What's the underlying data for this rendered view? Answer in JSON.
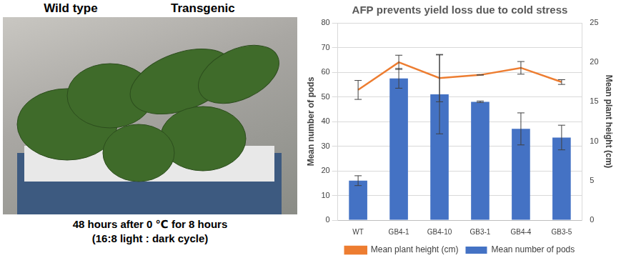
{
  "photo": {
    "labels": [
      "Wild type",
      "Transgenic"
    ],
    "caption": [
      "48 hours after 0 ℃ for 8 hours",
      "(16:8 light : dark cycle)"
    ]
  },
  "chart_data": {
    "type": "bar",
    "title": "AFP prevents yield loss due to cold stress",
    "categories": [
      "WT",
      "GB4-1",
      "GB4-10",
      "GB3-1",
      "GB4-4",
      "GB3-5"
    ],
    "series": [
      {
        "name": "Mean number of pods",
        "type": "bar",
        "color": "#4472c4",
        "values": [
          16,
          57.5,
          51,
          48,
          37,
          33.5
        ],
        "errors": [
          2,
          4,
          16,
          0.3,
          6.5,
          5
        ]
      },
      {
        "name": "Mean plant height (cm)",
        "type": "line",
        "axis": "y2",
        "color": "#ed7d31",
        "values": [
          16.5,
          20,
          18,
          18.4,
          19.3,
          17.5
        ],
        "errors": [
          1.2,
          0.9,
          3,
          0,
          0.8,
          0.3
        ]
      }
    ],
    "y_label": "Mean number of pods",
    "y2_label": "Mean plant height (cm)",
    "ylim": [
      0,
      80
    ],
    "yticks": [
      0,
      10,
      20,
      30,
      40,
      50,
      60,
      70,
      80
    ],
    "y2lim": [
      0,
      25
    ],
    "y2ticks": [
      0,
      5,
      10,
      15,
      20,
      25
    ],
    "grid": true,
    "legend": "bottom"
  }
}
